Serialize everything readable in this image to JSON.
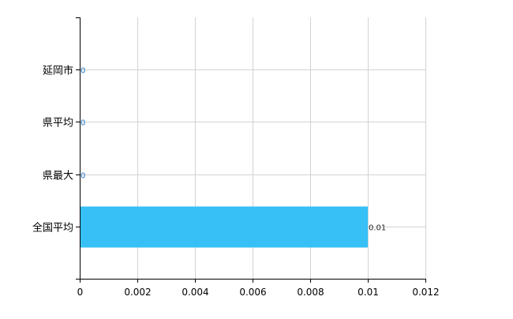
{
  "chart_data": {
    "type": "bar",
    "orientation": "horizontal",
    "title": "",
    "xlabel": "",
    "ylabel": "",
    "categories": [
      "延岡市",
      "県平均",
      "県最大",
      "全国平均"
    ],
    "values": [
      0,
      0,
      0,
      0.01
    ],
    "data_labels": [
      "0",
      "0",
      "0",
      "0.01"
    ],
    "xlim": [
      0,
      0.012
    ],
    "xticks": [
      0,
      0.002,
      0.004,
      0.006,
      0.008,
      0.01,
      0.012
    ],
    "xtick_labels": [
      "0",
      "0.002",
      "0.004",
      "0.006",
      "0.008",
      "0.01",
      "0.012"
    ],
    "grid": true,
    "legend": "none",
    "colors": {
      "bar": "#36c0f5",
      "grid": "#d3d3d3",
      "zero_label": "#1f6fc0",
      "label": "#222222",
      "axis": "#000000"
    }
  }
}
